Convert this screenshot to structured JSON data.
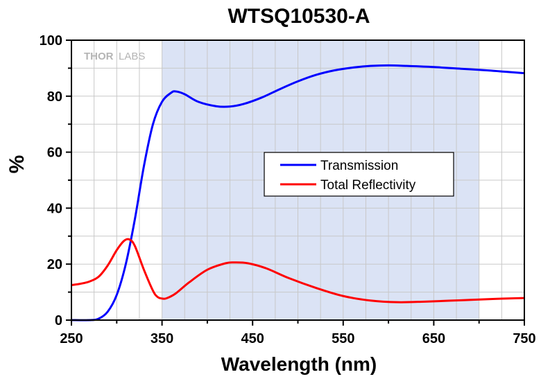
{
  "chart_data": {
    "type": "line",
    "title": "WTSQ10530-A",
    "xlabel": "Wavelength (nm)",
    "ylabel": "%",
    "xlim": [
      250,
      750
    ],
    "ylim": [
      0,
      100
    ],
    "xticks": [
      250,
      350,
      450,
      550,
      650,
      750
    ],
    "yticks": [
      0,
      20,
      40,
      60,
      80,
      100
    ],
    "grid": true,
    "legend_position": "center-right",
    "shaded_band": {
      "x": [
        350,
        700
      ],
      "color": "#dbe3f5"
    },
    "watermark": {
      "bold": "THOR",
      "light": "LABS"
    },
    "series": [
      {
        "name": "Transmission",
        "color": "#0000ff",
        "points": [
          [
            250,
            0
          ],
          [
            270,
            0
          ],
          [
            280,
            0.5
          ],
          [
            290,
            3
          ],
          [
            300,
            9
          ],
          [
            310,
            20
          ],
          [
            320,
            36
          ],
          [
            330,
            55
          ],
          [
            340,
            70
          ],
          [
            350,
            78
          ],
          [
            360,
            81.2
          ],
          [
            365,
            81.7
          ],
          [
            375,
            80.7
          ],
          [
            390,
            78
          ],
          [
            410,
            76.4
          ],
          [
            425,
            76.3
          ],
          [
            440,
            77.2
          ],
          [
            460,
            79.5
          ],
          [
            480,
            82.5
          ],
          [
            500,
            85.3
          ],
          [
            520,
            87.6
          ],
          [
            540,
            89.2
          ],
          [
            560,
            90.2
          ],
          [
            580,
            90.8
          ],
          [
            600,
            91
          ],
          [
            620,
            90.8
          ],
          [
            650,
            90.4
          ],
          [
            680,
            89.8
          ],
          [
            710,
            89.2
          ],
          [
            730,
            88.7
          ],
          [
            750,
            88.2
          ]
        ]
      },
      {
        "name": "Total Reflectivity",
        "color": "#ff0000",
        "points": [
          [
            250,
            12.5
          ],
          [
            260,
            13
          ],
          [
            270,
            13.8
          ],
          [
            280,
            15.5
          ],
          [
            290,
            19.5
          ],
          [
            300,
            25
          ],
          [
            308,
            28.3
          ],
          [
            314,
            28.8
          ],
          [
            320,
            26.5
          ],
          [
            330,
            18
          ],
          [
            340,
            10.5
          ],
          [
            345,
            8.3
          ],
          [
            350,
            7.7
          ],
          [
            355,
            7.8
          ],
          [
            365,
            9.5
          ],
          [
            380,
            13.5
          ],
          [
            400,
            18
          ],
          [
            420,
            20.3
          ],
          [
            430,
            20.6
          ],
          [
            445,
            20.3
          ],
          [
            465,
            18.5
          ],
          [
            490,
            15
          ],
          [
            520,
            11.5
          ],
          [
            550,
            8.6
          ],
          [
            580,
            7
          ],
          [
            610,
            6.4
          ],
          [
            640,
            6.6
          ],
          [
            680,
            7.1
          ],
          [
            720,
            7.6
          ],
          [
            750,
            7.9
          ]
        ]
      }
    ]
  }
}
